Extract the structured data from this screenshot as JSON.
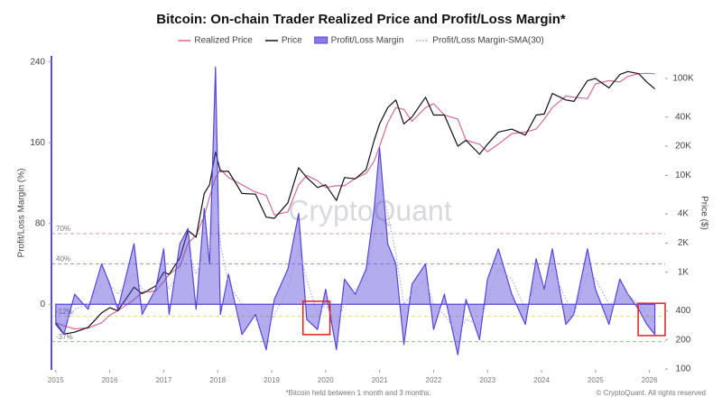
{
  "chart_data": {
    "type": "line",
    "title": "Bitcoin: On-chain Trader Realized Price and Profit/Loss Margin*",
    "footnote": "*Bitcoin held between 1 month and 3 months.",
    "credit": "© CryptoQuant. All rights reserved",
    "watermark": "CryptoQuant",
    "ylabel": "Profit/Loss Margin (%)",
    "y2label": "Price ($)",
    "xlim": [
      2014.92,
      2026.29
    ],
    "xticks": [
      2015,
      2016,
      2017,
      2018,
      2019,
      2020,
      2021,
      2022,
      2023,
      2024,
      2025,
      2026
    ],
    "ylim": [
      -65,
      246
    ],
    "yticks": [
      0,
      80,
      160,
      240
    ],
    "y2lim": [
      98,
      171000
    ],
    "y2_log": true,
    "y2ticks": [
      100,
      200,
      400,
      {
        "value": 1000,
        "label": "1K"
      },
      {
        "value": 2000,
        "label": "2K"
      },
      {
        "value": 4000,
        "label": "4K"
      },
      {
        "value": 10000,
        "label": "10K"
      },
      {
        "value": 20000,
        "label": "20K"
      },
      {
        "value": 40000,
        "label": "40K"
      },
      {
        "value": 100000,
        "label": "100K"
      }
    ],
    "grid": false,
    "legend": "top",
    "x": [
      2015.0,
      2015.15,
      2015.35,
      2015.6,
      2015.85,
      2016.0,
      2016.15,
      2016.45,
      2016.6,
      2016.85,
      2017.0,
      2017.1,
      2017.3,
      2017.45,
      2017.6,
      2017.75,
      2017.85,
      2017.96,
      2018.05,
      2018.2,
      2018.45,
      2018.7,
      2018.9,
      2019.05,
      2019.3,
      2019.5,
      2019.65,
      2019.85,
      2020.0,
      2020.2,
      2020.35,
      2020.55,
      2020.75,
      2020.9,
      2021.0,
      2021.15,
      2021.3,
      2021.45,
      2021.6,
      2021.85,
      2022.0,
      2022.2,
      2022.45,
      2022.6,
      2022.85,
      2023.0,
      2023.2,
      2023.45,
      2023.7,
      2023.9,
      2024.05,
      2024.2,
      2024.45,
      2024.6,
      2024.85,
      2025.0,
      2025.25,
      2025.45,
      2025.6,
      2025.8,
      2025.95,
      2026.1
    ],
    "series": [
      {
        "name": "Realized Price",
        "color": "#d46a9c",
        "style": "line",
        "axis": "y2",
        "values": [
          300,
          280,
          260,
          265,
          300,
          360,
          400,
          520,
          620,
          640,
          800,
          950,
          1150,
          2000,
          2400,
          3800,
          6000,
          9500,
          11500,
          9500,
          8000,
          6700,
          6200,
          3900,
          4200,
          8000,
          10000,
          8800,
          7500,
          7800,
          7800,
          9300,
          10500,
          14000,
          20000,
          35000,
          50000,
          48000,
          36000,
          50000,
          55000,
          42000,
          38000,
          23000,
          21000,
          17500,
          21000,
          27000,
          28000,
          30000,
          38000,
          50000,
          66000,
          64000,
          62000,
          88000,
          95000,
          92000,
          105000,
          112000,
          113000,
          112000
        ]
      },
      {
        "name": "Price",
        "color": "#111111",
        "style": "line",
        "axis": "y2",
        "values": [
          300,
          230,
          240,
          270,
          380,
          430,
          400,
          700,
          600,
          720,
          1000,
          950,
          1400,
          2700,
          2300,
          6500,
          8000,
          17500,
          11000,
          11000,
          6500,
          6400,
          3700,
          3600,
          5200,
          12000,
          9500,
          7500,
          8000,
          5500,
          9500,
          9200,
          11500,
          23000,
          34000,
          50000,
          60000,
          34000,
          40000,
          64000,
          42000,
          42000,
          20000,
          23000,
          16500,
          21000,
          28000,
          30000,
          26000,
          42000,
          43000,
          70000,
          60000,
          58000,
          95000,
          100000,
          80000,
          110000,
          118000,
          112000,
          92000,
          78000
        ]
      },
      {
        "name": "Profit/Loss Margin",
        "color": "#5646d6",
        "style": "area",
        "axis": "y",
        "values": [
          -20,
          -30,
          10,
          -5,
          40,
          20,
          -5,
          60,
          -10,
          15,
          55,
          -10,
          60,
          75,
          -5,
          95,
          40,
          235,
          -10,
          30,
          -30,
          -10,
          -45,
          5,
          35,
          90,
          -15,
          -25,
          15,
          -45,
          25,
          10,
          35,
          95,
          155,
          60,
          40,
          -40,
          20,
          40,
          -25,
          10,
          -50,
          5,
          -35,
          25,
          55,
          10,
          -20,
          45,
          15,
          55,
          -20,
          -10,
          55,
          15,
          -20,
          25,
          10,
          -5,
          -20,
          -30
        ]
      },
      {
        "name": "Profit/Loss Margin-SMA(30)",
        "color": "#9a96ee",
        "style": "dotted",
        "axis": "y",
        "values": [
          -15,
          -20,
          -5,
          0,
          20,
          20,
          10,
          30,
          15,
          10,
          30,
          15,
          35,
          55,
          30,
          50,
          50,
          120,
          60,
          20,
          0,
          -15,
          -25,
          -10,
          15,
          55,
          25,
          -10,
          0,
          -20,
          0,
          15,
          25,
          70,
          120,
          90,
          50,
          0,
          10,
          25,
          0,
          -10,
          -30,
          -15,
          -20,
          5,
          35,
          25,
          -5,
          20,
          20,
          35,
          5,
          -10,
          30,
          25,
          0,
          5,
          10,
          0,
          -10,
          -20
        ]
      }
    ],
    "reference_lines": [
      {
        "value": 70,
        "label": "70%",
        "color": "#d88a8a"
      },
      {
        "value": 40,
        "label": "40%",
        "color": "#7f74e0"
      },
      {
        "value": -12,
        "label": "-12%",
        "color": "#e3d36a"
      },
      {
        "value": -37,
        "label": "-37%",
        "color": "#6cbf6c"
      }
    ],
    "highlight_boxes": [
      {
        "x": [
          2019.58,
          2020.08
        ],
        "y": [
          3,
          -30
        ],
        "color": "#e02020"
      },
      {
        "x": [
          2025.79,
          2026.29
        ],
        "y": [
          1,
          -31
        ],
        "color": "#e02020"
      }
    ]
  }
}
